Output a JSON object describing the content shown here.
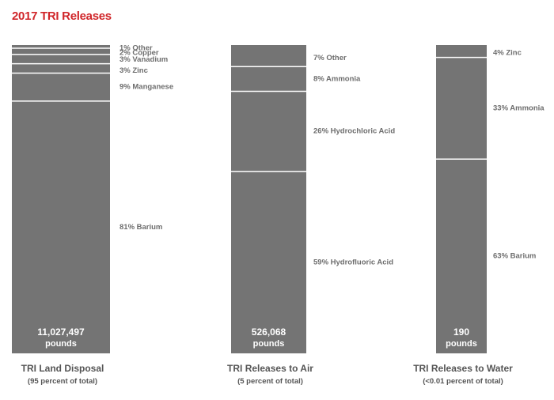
{
  "title": "2017 TRI Releases",
  "colors": {
    "title": "#d0262a",
    "bar": "#747474",
    "divider": "#ffffff",
    "label": "#6d6d6d",
    "caption": "#555555",
    "bar_text": "#ffffff"
  },
  "chart_data": [
    {
      "type": "bar",
      "stacked": true,
      "unit": "percent",
      "category": "TRI Land Disposal",
      "subtitle": "(95 percent of total)",
      "total_label": "11,027,497",
      "total_unit": "pounds",
      "segments": [
        {
          "label": "81% Barium",
          "value": 81
        },
        {
          "label": "9% Manganese",
          "value": 9
        },
        {
          "label": "3% Zinc",
          "value": 3
        },
        {
          "label": "3% Vanadium",
          "value": 3
        },
        {
          "label": "2% Copper",
          "value": 2
        },
        {
          "label": "1% Other",
          "value": 1
        }
      ]
    },
    {
      "type": "bar",
      "stacked": true,
      "unit": "percent",
      "category": "TRI Releases to Air",
      "subtitle": "(5 percent of total)",
      "total_label": "526,068",
      "total_unit": "pounds",
      "segments": [
        {
          "label": "59% Hydrofluoric Acid",
          "value": 59
        },
        {
          "label": "26% Hydrochloric Acid",
          "value": 26
        },
        {
          "label": "8% Ammonia",
          "value": 8
        },
        {
          "label": "7% Other",
          "value": 7
        }
      ]
    },
    {
      "type": "bar",
      "stacked": true,
      "unit": "percent",
      "category": "TRI Releases to Water",
      "subtitle": "(<0.01 percent of total)",
      "total_label": "190",
      "total_unit": "pounds",
      "segments": [
        {
          "label": "63% Barium",
          "value": 63
        },
        {
          "label": "33% Ammonia",
          "value": 33
        },
        {
          "label": "4% Zinc",
          "value": 4
        }
      ]
    }
  ]
}
